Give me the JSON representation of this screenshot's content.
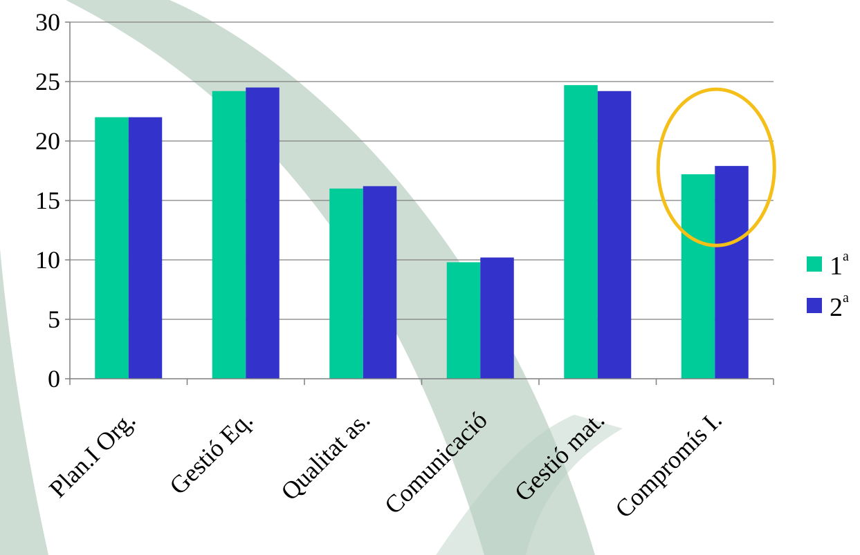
{
  "chart_data": {
    "type": "bar",
    "categories": [
      "Plan.I Org.",
      "Gestió Eq.",
      "Qualitat as.",
      "Comunicació",
      "Gestió mat.",
      "Compromís I."
    ],
    "series": [
      {
        "name": "1ª",
        "legend_base": "1",
        "legend_sup": "a",
        "color": "#00cc99",
        "values": [
          22,
          24.2,
          16,
          9.8,
          24.7,
          17.2
        ]
      },
      {
        "name": "2ª",
        "legend_base": "2",
        "legend_sup": "a",
        "color": "#3333cc",
        "values": [
          22,
          24.5,
          16.2,
          10.2,
          24.2,
          17.9
        ]
      }
    ],
    "ylim": [
      0,
      30
    ],
    "yticks": [
      0,
      5,
      10,
      15,
      20,
      25,
      30
    ],
    "grid": true,
    "legend_position": "right",
    "highlight": {
      "category": "Compromís I.",
      "shape": "ellipse",
      "color": "#f5bf1a"
    },
    "background_decoration_color": "#b8cfc0"
  }
}
